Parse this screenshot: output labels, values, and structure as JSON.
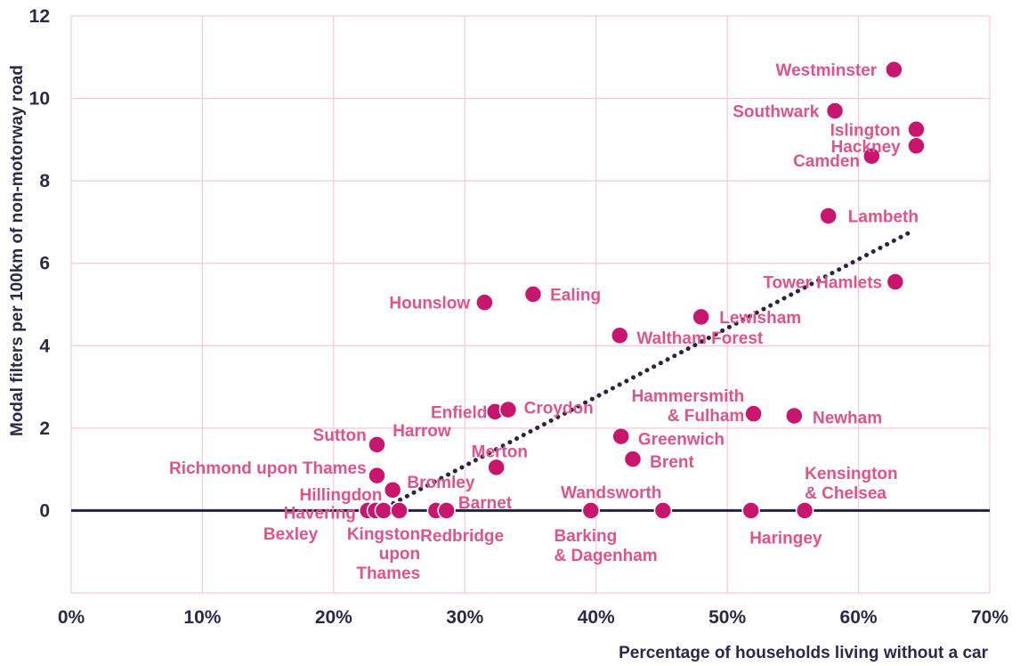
{
  "chart_data": {
    "type": "scatter",
    "xlabel": "Percentage of households living without a car",
    "ylabel": "Modal filters per 100km of non-motorway road",
    "xlim": [
      0,
      70
    ],
    "ylim": [
      -2,
      12
    ],
    "x_ticks": [
      "0%",
      "10%",
      "20%",
      "30%",
      "40%",
      "50%",
      "60%",
      "70%"
    ],
    "y_ticks": [
      "0",
      "2",
      "4",
      "6",
      "8",
      "10",
      "12"
    ],
    "grid": true,
    "trendline": {
      "style": "dotted",
      "from": [
        23.5,
        0
      ],
      "to": [
        64.2,
        6.8
      ]
    },
    "points": [
      {
        "name": "Westminster",
        "x": 62.7,
        "y": 10.7
      },
      {
        "name": "Southwark",
        "x": 58.2,
        "y": 9.7
      },
      {
        "name": "Islington",
        "x": 64.4,
        "y": 9.25
      },
      {
        "name": "Hackney",
        "x": 64.4,
        "y": 8.85
      },
      {
        "name": "Camden",
        "x": 61.0,
        "y": 8.6
      },
      {
        "name": "Lambeth",
        "x": 57.7,
        "y": 7.15
      },
      {
        "name": "Tower Hamlets",
        "x": 62.8,
        "y": 5.55
      },
      {
        "name": "Hounslow",
        "x": 31.5,
        "y": 5.05
      },
      {
        "name": "Ealing",
        "x": 35.2,
        "y": 5.25
      },
      {
        "name": "Lewisham",
        "x": 48.0,
        "y": 4.7
      },
      {
        "name": "Waltham Forest",
        "x": 41.8,
        "y": 4.25
      },
      {
        "name": "Enfield",
        "x": 32.3,
        "y": 2.4
      },
      {
        "name": "Croydon",
        "x": 33.3,
        "y": 2.45
      },
      {
        "name": "Hammersmith & Fulham",
        "x": 52.0,
        "y": 2.35
      },
      {
        "name": "Newham",
        "x": 55.1,
        "y": 2.3
      },
      {
        "name": "Sutton",
        "x": 23.3,
        "y": 1.6
      },
      {
        "name": "Harrow",
        "x": 23.3,
        "y": 0.85
      },
      {
        "name": "Greenwich",
        "x": 41.9,
        "y": 1.8
      },
      {
        "name": "Merton",
        "x": 32.4,
        "y": 1.05
      },
      {
        "name": "Brent",
        "x": 42.8,
        "y": 1.25
      },
      {
        "name": "Richmond upon Thames",
        "x": 23.3,
        "y": 0.85
      },
      {
        "name": "Bromley",
        "x": 24.5,
        "y": 0.5
      },
      {
        "name": "Hillingdon",
        "x": 24.5,
        "y": 0.5
      },
      {
        "name": "Havering",
        "x": 22.6,
        "y": 0
      },
      {
        "name": "Bexley",
        "x": 23.2,
        "y": 0
      },
      {
        "name": "Kingston upon Thames",
        "x": 23.8,
        "y": 0
      },
      {
        "name": "Barnet",
        "x": 25.0,
        "y": 0
      },
      {
        "name": "Redbridge",
        "x": 27.8,
        "y": 0
      },
      {
        "name": "Redbridge",
        "x": 28.6,
        "y": 0
      },
      {
        "name": "Barking & Dagenham",
        "x": 39.6,
        "y": 0
      },
      {
        "name": "Wandsworth",
        "x": 45.1,
        "y": 0
      },
      {
        "name": "Haringey",
        "x": 51.8,
        "y": 0
      },
      {
        "name": "Kensington & Chelsea",
        "x": 55.9,
        "y": 0
      }
    ],
    "labels": [
      {
        "lines": [
          "Westminster"
        ],
        "x": 61.4,
        "y": 10.7,
        "anchor": "end"
      },
      {
        "lines": [
          "Southwark"
        ],
        "x": 57.0,
        "y": 9.7,
        "anchor": "end"
      },
      {
        "lines": [
          "Islington"
        ],
        "x": 63.2,
        "y": 9.25,
        "anchor": "end"
      },
      {
        "lines": [
          "Hackney"
        ],
        "x": 63.2,
        "y": 8.85,
        "anchor": "end"
      },
      {
        "lines": [
          "Camden"
        ],
        "x": 60.1,
        "y": 8.5,
        "anchor": "end"
      },
      {
        "lines": [
          "Lambeth"
        ],
        "x": 59.2,
        "y": 7.15,
        "anchor": "start"
      },
      {
        "lines": [
          "Tower Hamlets"
        ],
        "x": 61.8,
        "y": 5.55,
        "anchor": "end"
      },
      {
        "lines": [
          "Hounslow"
        ],
        "x": 30.4,
        "y": 5.05,
        "anchor": "end"
      },
      {
        "lines": [
          "Ealing"
        ],
        "x": 36.5,
        "y": 5.25,
        "anchor": "start"
      },
      {
        "lines": [
          "Lewisham"
        ],
        "x": 49.4,
        "y": 4.7,
        "anchor": "start"
      },
      {
        "lines": [
          "Waltham Forest"
        ],
        "x": 43.1,
        "y": 4.2,
        "anchor": "start"
      },
      {
        "lines": [
          "Enfield"
        ],
        "x": 31.7,
        "y": 2.4,
        "anchor": "end"
      },
      {
        "lines": [
          "Croydon"
        ],
        "x": 34.5,
        "y": 2.5,
        "anchor": "start"
      },
      {
        "lines": [
          "Hammersmith",
          "& Fulham"
        ],
        "x": 51.3,
        "y": 2.8,
        "anchor": "end"
      },
      {
        "lines": [
          "Newham"
        ],
        "x": 56.5,
        "y": 2.27,
        "anchor": "start"
      },
      {
        "lines": [
          "Sutton"
        ],
        "x": 22.5,
        "y": 1.85,
        "anchor": "end"
      },
      {
        "lines": [
          "Harrow"
        ],
        "x": 24.5,
        "y": 1.95,
        "anchor": "start"
      },
      {
        "lines": [
          "Greenwich"
        ],
        "x": 43.2,
        "y": 1.75,
        "anchor": "start"
      },
      {
        "lines": [
          "Merton"
        ],
        "x": 30.5,
        "y": 1.45,
        "anchor": "start"
      },
      {
        "lines": [
          "Brent"
        ],
        "x": 44.1,
        "y": 1.2,
        "anchor": "start"
      },
      {
        "lines": [
          "Richmond upon Thames"
        ],
        "x": 22.5,
        "y": 1.05,
        "anchor": "end"
      },
      {
        "lines": [
          "Bromley"
        ],
        "x": 25.6,
        "y": 0.7,
        "anchor": "start"
      },
      {
        "lines": [
          "Hillingdon"
        ],
        "x": 23.7,
        "y": 0.4,
        "anchor": "end"
      },
      {
        "lines": [
          "Barnet"
        ],
        "x": 29.5,
        "y": 0.2,
        "anchor": "start"
      },
      {
        "lines": [
          "Wandsworth"
        ],
        "x": 45.0,
        "y": 0.45,
        "anchor": "end"
      },
      {
        "lines": [
          "Kensington",
          "& Chelsea"
        ],
        "x": 55.9,
        "y": 0.92,
        "anchor": "start"
      },
      {
        "lines": [
          "Havering"
        ],
        "x": 21.7,
        "y": -0.05,
        "anchor": "end"
      },
      {
        "lines": [
          "Bexley"
        ],
        "x": 18.8,
        "y": -0.55,
        "anchor": "end"
      },
      {
        "lines": [
          "Kingston",
          "upon",
          "Thames"
        ],
        "x": 26.6,
        "y": -0.55,
        "anchor": "end"
      },
      {
        "lines": [
          "Redbridge"
        ],
        "x": 26.6,
        "y": -0.6,
        "anchor": "start"
      },
      {
        "lines": [
          "Barking",
          "& Dagenham"
        ],
        "x": 36.8,
        "y": -0.6,
        "anchor": "start"
      },
      {
        "lines": [
          "Haringey"
        ],
        "x": 51.7,
        "y": -0.65,
        "anchor": "start"
      }
    ],
    "colors": {
      "point": "#c8166e",
      "label": "#e0538a",
      "trend": "#2a2345",
      "grid": "#f6c9d6",
      "text": "#2a2a48"
    }
  }
}
